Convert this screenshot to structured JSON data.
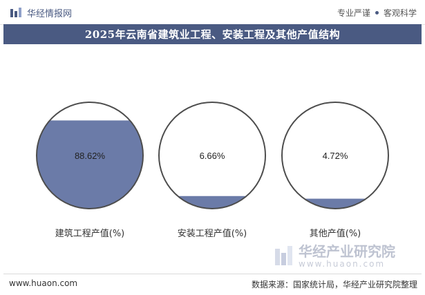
{
  "header": {
    "brand": "华经情报网",
    "tagline_left": "专业严谨",
    "tagline_right": "客观科学"
  },
  "colors": {
    "accent": "#4a5a82",
    "fill": "#6b7ba8",
    "outline": "#4d4d4d"
  },
  "chart_data": {
    "type": "pie",
    "title": "2025年云南省建筑业工程、安装工程及其他产值结构",
    "series": [
      {
        "label": "建筑工程产值",
        "unit": "(%)",
        "value": 88.62,
        "value_label": "88.62%"
      },
      {
        "label": "安装工程产值",
        "unit": "(%)",
        "value": 6.66,
        "value_label": "6.66%"
      },
      {
        "label": "其他产值",
        "unit": "(%)",
        "value": 4.72,
        "value_label": "4.72%"
      }
    ]
  },
  "watermark": {
    "name": "华经产业研究院",
    "url": "www.huaon.com"
  },
  "footer": {
    "site": "www.huaon.com",
    "source": "数据来源：国家统计局，华经产业研究院整理"
  }
}
